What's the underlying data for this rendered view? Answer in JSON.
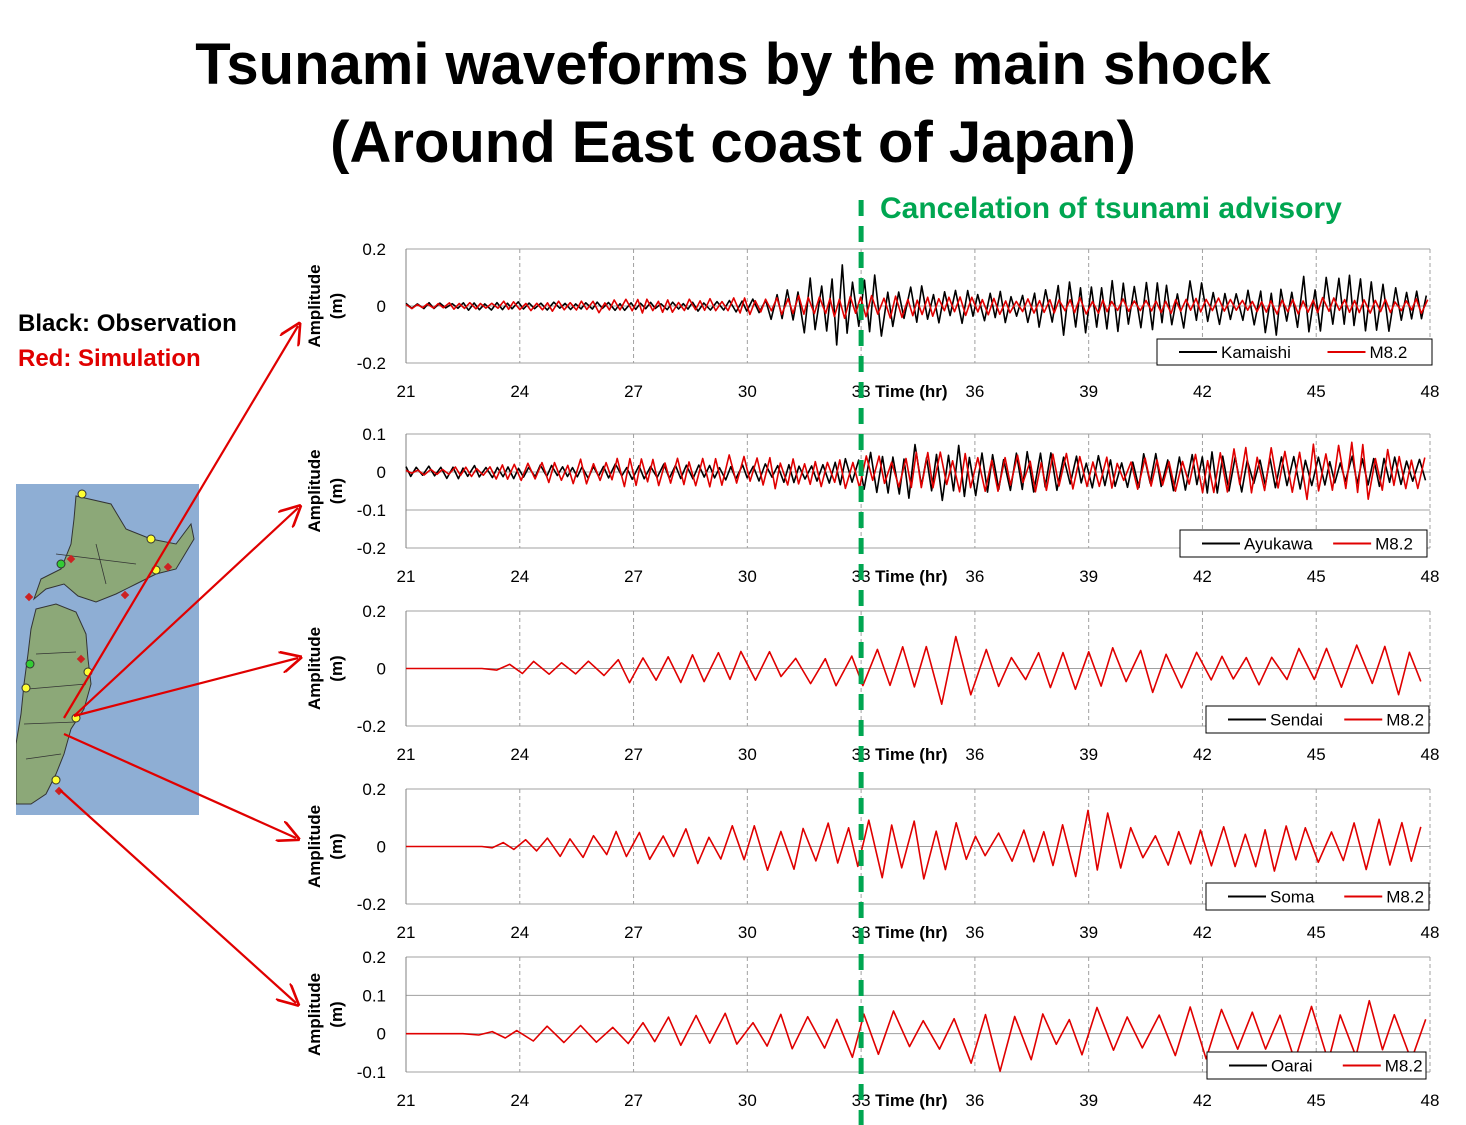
{
  "title": {
    "line1": "Tsunami waveforms by the main shock",
    "line2": "(Around East coast of Japan)"
  },
  "legend_note": {
    "black": "Black: Observation",
    "red": "Red: Simulation"
  },
  "annotation": {
    "label": "Cancelation of tsunami advisory",
    "time_hr": 33,
    "color": "#00a651"
  },
  "colors": {
    "observation": "#000000",
    "simulation": "#e00000",
    "grid": "#a0a0a0",
    "map_sea": "#8eaed4",
    "map_land": "#8ca878"
  },
  "chart_data": [
    {
      "type": "line",
      "station": "Kamaishi",
      "ylabel": "Amplitude (m)",
      "xlabel": "Time (hr)",
      "xlim": [
        21,
        48
      ],
      "xticks": [
        21,
        24,
        27,
        30,
        33,
        36,
        39,
        42,
        45,
        48
      ],
      "ylim": [
        -0.2,
        0.2
      ],
      "yticks": [
        -0.2,
        0,
        0.2
      ],
      "ytick_labels": [
        "-0.2",
        "0",
        "0.2"
      ],
      "series": [
        {
          "name": "Kamaishi",
          "color": "#000000",
          "start": 21,
          "obs_amp_hr": [
            [
              21,
              0.012
            ],
            [
              28,
              0.014
            ],
            [
              30,
              0.02
            ],
            [
              31,
              0.05
            ],
            [
              32.3,
              0.14
            ],
            [
              33,
              0.12
            ],
            [
              34,
              0.07
            ],
            [
              36,
              0.05
            ],
            [
              38,
              0.07
            ],
            [
              39,
              0.12
            ],
            [
              40,
              0.09
            ],
            [
              42,
              0.07
            ],
            [
              45,
              0.09
            ],
            [
              46,
              0.1
            ],
            [
              48,
              0.06
            ]
          ],
          "period_hr": 0.3
        },
        {
          "name": "M8.2",
          "color": "#e00000",
          "start": 21,
          "amp_hr": [
            [
              21,
              0.008
            ],
            [
              26,
              0.02
            ],
            [
              30,
              0.025
            ],
            [
              32.5,
              0.04
            ],
            [
              35,
              0.03
            ],
            [
              40,
              0.025
            ],
            [
              48,
              0.025
            ]
          ],
          "period_hr": 0.28
        }
      ],
      "legend": [
        "Kamaishi",
        "M8.2"
      ]
    },
    {
      "type": "line",
      "station": "Ayukawa",
      "ylabel": "Amplitude (m)",
      "xlabel": "Time (hr)",
      "xlim": [
        21,
        48
      ],
      "xticks": [
        21,
        24,
        27,
        30,
        33,
        36,
        39,
        42,
        45,
        48
      ],
      "ylim": [
        -0.2,
        0.1
      ],
      "yticks": [
        -0.2,
        -0.1,
        0,
        0.1
      ],
      "ytick_labels": [
        "-0.2",
        "-0.1",
        "0",
        "0.1"
      ],
      "series": [
        {
          "name": "Ayukawa",
          "color": "#000000",
          "start": 21,
          "obs_amp_hr": [
            [
              21,
              0.015
            ],
            [
              30,
              0.02
            ],
            [
              32,
              0.025
            ],
            [
              34,
              0.06
            ],
            [
              35,
              0.07
            ],
            [
              37,
              0.05
            ],
            [
              40,
              0.04
            ],
            [
              42,
              0.05
            ],
            [
              45,
              0.04
            ],
            [
              48,
              0.03
            ]
          ],
          "period_hr": 0.3
        },
        {
          "name": "M8.2",
          "color": "#e00000",
          "start": 21,
          "amp_hr": [
            [
              21,
              0.005
            ],
            [
              24,
              0.02
            ],
            [
              27,
              0.035
            ],
            [
              30,
              0.04
            ],
            [
              33,
              0.04
            ],
            [
              36,
              0.05
            ],
            [
              40,
              0.04
            ],
            [
              46,
              0.07
            ],
            [
              48,
              0.04
            ]
          ],
          "period_hr": 0.33
        }
      ],
      "legend": [
        "Ayukawa",
        "M8.2"
      ]
    },
    {
      "type": "line",
      "station": "Sendai",
      "ylabel": "Amplitude (m)",
      "xlabel": "Time (hr)",
      "xlim": [
        21,
        48
      ],
      "xticks": [
        21,
        24,
        27,
        30,
        33,
        36,
        39,
        42,
        45,
        48
      ],
      "ylim": [
        -0.2,
        0.2
      ],
      "yticks": [
        -0.2,
        0,
        0.2
      ],
      "ytick_labels": [
        "-0.2",
        "0",
        "0.2"
      ],
      "series": [
        {
          "name": "Sendai",
          "color": "#000000",
          "observed": false
        },
        {
          "name": "M8.2",
          "color": "#e00000",
          "start": 23,
          "amp_hr": [
            [
              23,
              0.0
            ],
            [
              24,
              0.02
            ],
            [
              26,
              0.04
            ],
            [
              29,
              0.05
            ],
            [
              32,
              0.05
            ],
            [
              34,
              0.09
            ],
            [
              35.5,
              0.12
            ],
            [
              37,
              0.05
            ],
            [
              39.5,
              0.08
            ],
            [
              42,
              0.07
            ],
            [
              44,
              0.06
            ],
            [
              47,
              0.09
            ],
            [
              48,
              0.05
            ]
          ],
          "period_hr": 0.7
        }
      ],
      "legend": [
        "Sendai",
        "M8.2"
      ]
    },
    {
      "type": "line",
      "station": "Soma",
      "ylabel": "Amplitude (m)",
      "xlabel": "Time (hr)",
      "xlim": [
        21,
        48
      ],
      "xticks": [
        21,
        24,
        27,
        30,
        33,
        36,
        39,
        42,
        45,
        48
      ],
      "ylim": [
        -0.2,
        0.2
      ],
      "yticks": [
        -0.2,
        0,
        0.2
      ],
      "ytick_labels": [
        "-0.2",
        "0",
        "0.2"
      ],
      "series": [
        {
          "name": "Soma",
          "color": "#000000",
          "observed": false
        },
        {
          "name": "M8.2",
          "color": "#e00000",
          "start": 23,
          "amp_hr": [
            [
              23,
              0.0
            ],
            [
              24,
              0.02
            ],
            [
              26,
              0.04
            ],
            [
              28,
              0.05
            ],
            [
              31,
              0.08
            ],
            [
              33,
              0.09
            ],
            [
              34.5,
              0.12
            ],
            [
              36,
              0.05
            ],
            [
              38.5,
              0.1
            ],
            [
              39.2,
              0.13
            ],
            [
              40.5,
              0.05
            ],
            [
              42.5,
              0.08
            ],
            [
              45,
              0.07
            ],
            [
              47,
              0.09
            ],
            [
              48,
              0.06
            ]
          ],
          "period_hr": 0.6
        }
      ],
      "legend": [
        "Soma",
        "M8.2"
      ]
    },
    {
      "type": "line",
      "station": "Oarai",
      "ylabel": "Amplitude (m)",
      "xlabel": "Time (hr)",
      "xlim": [
        21,
        48
      ],
      "xticks": [
        21,
        24,
        27,
        30,
        33,
        36,
        39,
        42,
        45,
        48
      ],
      "ylim": [
        -0.1,
        0.2
      ],
      "yticks": [
        -0.1,
        0,
        0.1,
        0.2
      ],
      "ytick_labels": [
        "-0.1",
        "0",
        "0.1",
        "0.2"
      ],
      "series": [
        {
          "name": "Oarai",
          "color": "#000000",
          "observed": false
        },
        {
          "name": "M8.2",
          "color": "#e00000",
          "start": 22.5,
          "amp_hr": [
            [
              22.5,
              0.0
            ],
            [
              24,
              0.015
            ],
            [
              26,
              0.025
            ],
            [
              28,
              0.04
            ],
            [
              31,
              0.05
            ],
            [
              33,
              0.06
            ],
            [
              35,
              0.05
            ],
            [
              36.5,
              0.09
            ],
            [
              38,
              0.05
            ],
            [
              41.5,
              0.07
            ],
            [
              43,
              0.07
            ],
            [
              45,
              0.06
            ],
            [
              47,
              0.08
            ],
            [
              48,
              0.05
            ]
          ],
          "period_hr": 0.75
        }
      ],
      "legend": [
        "Oarai",
        "M8.2"
      ]
    }
  ]
}
